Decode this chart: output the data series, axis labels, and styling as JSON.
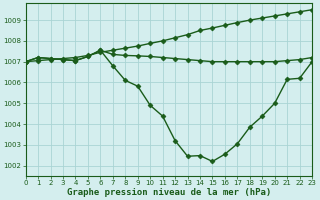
{
  "bg_color": "#d4eeee",
  "grid_color": "#aad4d4",
  "line_color": "#1a5c1a",
  "line_width": 1.0,
  "marker": "D",
  "marker_size": 2.5,
  "xlim": [
    0,
    23
  ],
  "ylim": [
    1001.5,
    1009.8
  ],
  "yticks": [
    1002,
    1003,
    1004,
    1005,
    1006,
    1007,
    1008,
    1009
  ],
  "xticks": [
    0,
    1,
    2,
    3,
    4,
    5,
    6,
    7,
    8,
    9,
    10,
    11,
    12,
    13,
    14,
    15,
    16,
    17,
    18,
    19,
    20,
    21,
    22,
    23
  ],
  "xlabel": "Graphe pression niveau de la mer (hPa)",
  "line1_x": [
    0,
    1,
    2,
    3,
    4,
    5,
    6,
    7,
    8,
    9,
    10,
    11,
    12,
    13,
    14,
    15,
    16,
    17,
    18,
    19,
    20,
    21,
    22,
    23
  ],
  "line1_y": [
    1007.0,
    1007.05,
    1007.1,
    1007.15,
    1007.2,
    1007.3,
    1007.45,
    1007.55,
    1007.65,
    1007.75,
    1007.88,
    1008.0,
    1008.15,
    1008.3,
    1008.5,
    1008.62,
    1008.75,
    1008.88,
    1009.0,
    1009.1,
    1009.2,
    1009.3,
    1009.4,
    1009.5
  ],
  "line2_x": [
    0,
    1,
    2,
    3,
    4,
    5,
    6,
    7,
    8,
    9,
    10,
    11,
    12,
    13,
    14,
    15,
    16,
    17,
    18,
    19,
    20,
    21,
    22,
    23
  ],
  "line2_y": [
    1007.0,
    1007.2,
    1007.15,
    1007.1,
    1007.05,
    1007.25,
    1007.55,
    1007.35,
    1007.3,
    1007.28,
    1007.25,
    1007.2,
    1007.15,
    1007.1,
    1007.05,
    1007.0,
    1007.0,
    1007.0,
    1007.0,
    1007.0,
    1007.0,
    1007.05,
    1007.1,
    1007.2
  ],
  "line3_x": [
    0,
    1,
    2,
    3,
    4,
    5,
    6,
    7,
    8,
    9,
    10,
    11,
    12,
    13,
    14,
    15,
    16,
    17,
    18,
    19,
    20,
    21,
    22,
    23
  ],
  "line3_y": [
    1007.0,
    1007.2,
    1007.15,
    1007.1,
    1007.05,
    1007.25,
    1007.55,
    1006.8,
    1006.1,
    1005.82,
    1004.9,
    1004.38,
    1003.2,
    1002.45,
    1002.48,
    1002.2,
    1002.55,
    1003.05,
    1003.85,
    1004.38,
    1005.0,
    1006.15,
    1006.2,
    1007.0
  ],
  "tick_fontsize": 5,
  "xlabel_fontsize": 6.5,
  "xlabel_bold": true
}
